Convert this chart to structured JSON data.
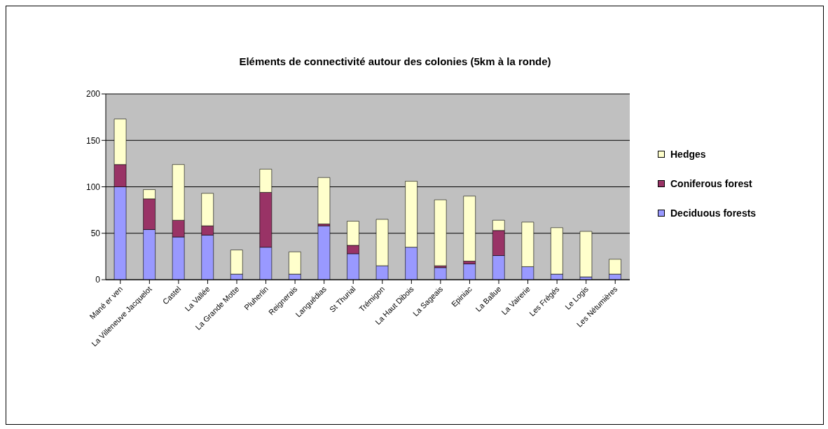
{
  "chart_data": {
    "type": "bar",
    "title": "Eléments de connectivité autour des colonies (5km à la ronde)",
    "categories": [
      "Mané er ven",
      "La Villeneuve Jacquelot",
      "Castel",
      "La Vallée",
      "La Grande Motte",
      "Pluherlin",
      "Reignerais",
      "Languédias",
      "St Thurial",
      "Trémigon",
      "La Haut Dibois",
      "La Sageais",
      "Epiniac",
      "La Ballue",
      "La Vairerie",
      "Les Frégés",
      "Le Logis",
      "Les Nétumières"
    ],
    "stacked": true,
    "series": [
      {
        "name": "Deciduous forests",
        "color": "#9999ff",
        "values": [
          100,
          54,
          46,
          48,
          6,
          35,
          6,
          58,
          28,
          15,
          35,
          13,
          17,
          26,
          14,
          6,
          3,
          6
        ]
      },
      {
        "name": "Coniferous forest",
        "color": "#993366",
        "values": [
          24,
          33,
          18,
          10,
          0,
          59,
          0,
          2,
          9,
          0,
          0,
          2,
          3,
          27,
          0,
          0,
          0,
          0
        ]
      },
      {
        "name": "Hedges",
        "color": "#ffffcc",
        "values": [
          49,
          10,
          60,
          35,
          26,
          25,
          24,
          50,
          26,
          50,
          71,
          71,
          70,
          11,
          48,
          50,
          49,
          16
        ]
      }
    ],
    "ylim": [
      0,
      200
    ],
    "yticks": [
      0,
      50,
      100,
      150,
      200
    ],
    "grid": "y",
    "legend": "right"
  }
}
